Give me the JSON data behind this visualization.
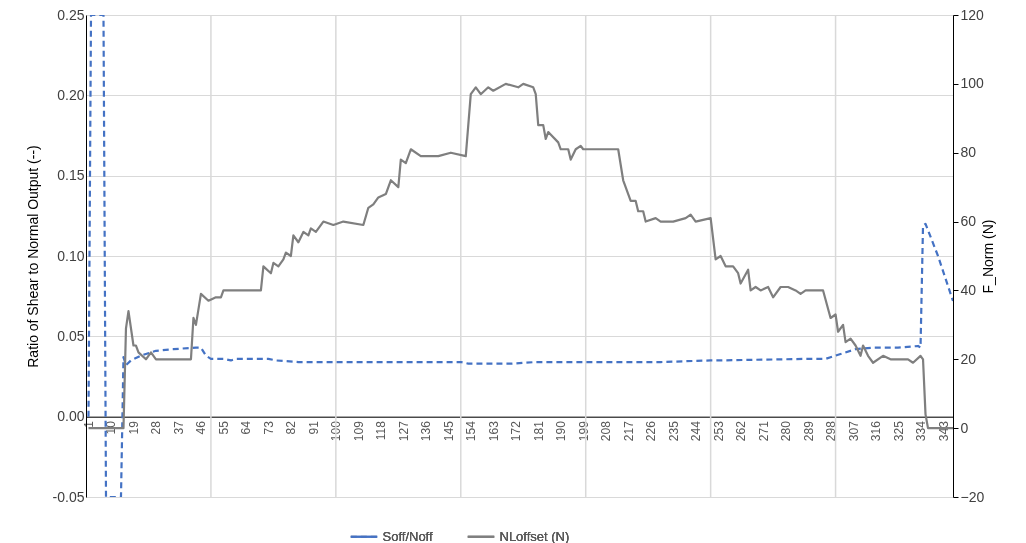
{
  "chart_data": {
    "type": "line",
    "xlabel": null,
    "ylabel": "Ratio of Shear to Normal Output (--)",
    "y2label": "F_Norm (N)",
    "xlim": [
      0,
      347
    ],
    "xticks": [
      1,
      10,
      19,
      28,
      37,
      46,
      55,
      64,
      73,
      82,
      91,
      100,
      109,
      118,
      127,
      136,
      145,
      154,
      163,
      172,
      181,
      190,
      199,
      208,
      217,
      226,
      235,
      244,
      253,
      262,
      271,
      280,
      289,
      298,
      307,
      316,
      325,
      334,
      343
    ],
    "ylim": [
      -0.05,
      0.25
    ],
    "yticks": [
      {
        "value": -0.05,
        "label": "-0.05"
      },
      {
        "value": 0,
        "label": "0.00"
      },
      {
        "value": 0.05,
        "label": "0.05"
      },
      {
        "value": 0.1,
        "label": "0.10"
      },
      {
        "value": 0.15,
        "label": "0.15"
      },
      {
        "value": 0.2,
        "label": "0.20"
      },
      {
        "value": 0.25,
        "label": "0.25"
      }
    ],
    "y2lim": [
      -20,
      120
    ],
    "y2ticks": [
      -20,
      0,
      20,
      40,
      60,
      80,
      100,
      120
    ],
    "grid": "y",
    "legend": "bottom",
    "ref_lines": [
      {
        "axis": "x",
        "value": 50,
        "color": "#d9d9d9"
      },
      {
        "axis": "x",
        "value": 100,
        "color": "#d9d9d9"
      },
      {
        "axis": "x",
        "value": 150,
        "color": "#d9d9d9"
      },
      {
        "axis": "x",
        "value": 200,
        "color": "#d9d9d9"
      },
      {
        "axis": "x",
        "value": 250,
        "color": "#d9d9d9"
      },
      {
        "axis": "x",
        "value": 300,
        "color": "#d9d9d9"
      }
    ],
    "series": [
      {
        "name": "Soff/Noff",
        "color": "#4472c4",
        "line_style": "dashed",
        "x": [
          1,
          2,
          7,
          8,
          14,
          15,
          16,
          18,
          22,
          28,
          35,
          44,
          46,
          48,
          50,
          55,
          58,
          60,
          73,
          76,
          85,
          100,
          150,
          153,
          170,
          180,
          200,
          230,
          250,
          253,
          290,
          296,
          302,
          308,
          315,
          325,
          333,
          334,
          335,
          336,
          341,
          347
        ],
        "values": [
          0,
          0.25,
          0.25,
          -0.05,
          -0.05,
          0.037,
          0.032,
          0.035,
          0.038,
          0.041,
          0.042,
          0.043,
          0.043,
          0.038,
          0.036,
          0.036,
          0.035,
          0.036,
          0.036,
          0.035,
          0.034,
          0.034,
          0.034,
          0.033,
          0.033,
          0.034,
          0.034,
          0.034,
          0.035,
          0.035,
          0.036,
          0.036,
          0.039,
          0.042,
          0.043,
          0.043,
          0.044,
          0.043,
          0.119,
          0.12,
          0.1,
          0.072
        ]
      },
      {
        "name": "NLoffset (N)",
        "color": "#7f7f7f",
        "line_style": "solid",
        "axis": "y2",
        "x": [
          1,
          15,
          16,
          17,
          19,
          20,
          21,
          24,
          26,
          28,
          42,
          43,
          44,
          46,
          49,
          52,
          54,
          55,
          58,
          70,
          71,
          74,
          75,
          77,
          79,
          80,
          82,
          83,
          85,
          87,
          89,
          90,
          92,
          95,
          99,
          103,
          111,
          113,
          115,
          117,
          120,
          122,
          125,
          126,
          128,
          130,
          134,
          141,
          146,
          152,
          154,
          156,
          158,
          161,
          163,
          168,
          173,
          175,
          179,
          180,
          181,
          183,
          184,
          185,
          189,
          190,
          193,
          194,
          196,
          198,
          199,
          204,
          213,
          215,
          218,
          220,
          221,
          223,
          224,
          228,
          230,
          235,
          240,
          242,
          244,
          250,
          252,
          254,
          256,
          259,
          261,
          262,
          265,
          266,
          268,
          270,
          273,
          275,
          278,
          281,
          284,
          286,
          288,
          295,
          298,
          300,
          301,
          303,
          304,
          306,
          308,
          310,
          311,
          313,
          315,
          319,
          322,
          329,
          331,
          334,
          335,
          336,
          337,
          347
        ],
        "values": [
          0,
          0,
          29,
          34,
          24,
          24,
          22,
          20,
          22,
          20,
          20,
          32,
          30,
          39,
          37,
          38,
          38,
          40,
          40,
          40,
          47,
          45,
          48,
          47,
          49,
          51,
          50,
          56,
          54,
          57,
          56,
          58,
          57,
          60,
          59,
          60,
          59,
          64,
          65,
          67,
          68,
          72,
          70,
          78,
          77,
          81,
          79,
          79,
          80,
          79,
          97,
          99,
          97,
          99,
          98,
          100,
          99,
          100,
          99,
          97,
          88,
          88,
          84,
          86,
          83,
          81,
          81,
          78,
          81,
          82,
          81,
          81,
          81,
          72,
          66,
          66,
          63,
          63,
          60,
          61,
          60,
          60,
          61,
          62,
          60,
          61,
          49,
          50,
          47,
          47,
          45,
          42,
          46,
          40,
          41,
          40,
          41,
          38,
          41,
          41,
          40,
          39,
          40,
          40,
          32,
          33,
          28,
          30,
          25,
          26,
          24,
          21,
          24,
          21,
          19,
          21,
          20,
          20,
          19,
          21,
          20,
          4,
          0,
          0
        ]
      }
    ]
  }
}
